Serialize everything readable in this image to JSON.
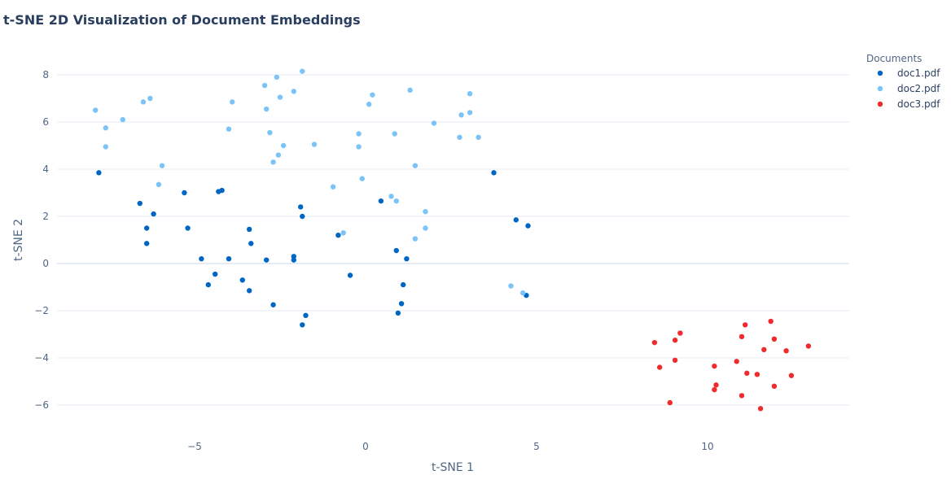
{
  "chart_data": {
    "type": "scatter",
    "title": "t-SNE 2D Visualization of Document Embeddings",
    "xlabel": "t-SNE 1",
    "ylabel": "t-SNE 2",
    "xlim": [
      -9,
      14
    ],
    "ylim": [
      -7.3,
      9
    ],
    "x_ticks": [
      -5,
      0,
      5,
      10
    ],
    "y_ticks": [
      -6,
      -4,
      -2,
      0,
      2,
      4,
      6,
      8
    ],
    "x_tick_labels": [
      "−5",
      "0",
      "5",
      "10"
    ],
    "y_tick_labels": [
      "−6",
      "−4",
      "−2",
      "0",
      "2",
      "4",
      "6",
      "8"
    ],
    "grid": true,
    "legend": {
      "title": "Documents",
      "position": "top-right"
    },
    "series": [
      {
        "name": "doc1.pdf",
        "color": "#0066c4",
        "points": [
          [
            -7.8,
            3.85
          ],
          [
            -6.6,
            2.55
          ],
          [
            -6.2,
            2.1
          ],
          [
            -6.4,
            1.5
          ],
          [
            -6.4,
            0.85
          ],
          [
            -5.3,
            3.0
          ],
          [
            -5.2,
            1.5
          ],
          [
            -4.8,
            0.2
          ],
          [
            -4.3,
            3.05
          ],
          [
            -4.2,
            3.1
          ],
          [
            -4.0,
            0.2
          ],
          [
            -4.4,
            -0.45
          ],
          [
            -4.6,
            -0.9
          ],
          [
            -3.6,
            -0.7
          ],
          [
            -3.4,
            -1.15
          ],
          [
            -3.4,
            1.45
          ],
          [
            -3.35,
            0.85
          ],
          [
            -2.9,
            0.15
          ],
          [
            -2.7,
            -1.75
          ],
          [
            -2.1,
            0.3
          ],
          [
            -2.1,
            0.15
          ],
          [
            -1.9,
            2.4
          ],
          [
            -1.85,
            2.0
          ],
          [
            -1.75,
            -2.2
          ],
          [
            -1.85,
            -2.6
          ],
          [
            -0.8,
            1.2
          ],
          [
            -0.45,
            -0.5
          ],
          [
            0.45,
            2.65
          ],
          [
            0.9,
            0.55
          ],
          [
            1.2,
            0.2
          ],
          [
            1.1,
            -0.9
          ],
          [
            1.05,
            -1.7
          ],
          [
            0.95,
            -2.1
          ],
          [
            3.75,
            3.85
          ],
          [
            4.4,
            1.85
          ],
          [
            4.75,
            1.6
          ],
          [
            4.7,
            -1.35
          ]
        ]
      },
      {
        "name": "doc2.pdf",
        "color": "#7cc3f7",
        "points": [
          [
            -7.9,
            6.5
          ],
          [
            -7.6,
            5.75
          ],
          [
            -7.6,
            4.95
          ],
          [
            -7.1,
            6.1
          ],
          [
            -6.5,
            6.85
          ],
          [
            -6.3,
            7.0
          ],
          [
            -5.95,
            4.15
          ],
          [
            -6.05,
            3.35
          ],
          [
            -3.9,
            6.85
          ],
          [
            -4.0,
            5.7
          ],
          [
            -2.95,
            7.55
          ],
          [
            -2.9,
            6.55
          ],
          [
            -2.8,
            5.55
          ],
          [
            -2.6,
            7.9
          ],
          [
            -2.5,
            7.05
          ],
          [
            -2.55,
            4.6
          ],
          [
            -2.4,
            5.0
          ],
          [
            -2.7,
            4.3
          ],
          [
            -2.1,
            7.3
          ],
          [
            -1.85,
            8.15
          ],
          [
            -1.5,
            5.05
          ],
          [
            -0.95,
            3.25
          ],
          [
            -0.65,
            1.3
          ],
          [
            -0.2,
            5.5
          ],
          [
            -0.2,
            4.95
          ],
          [
            -0.1,
            3.6
          ],
          [
            0.1,
            6.75
          ],
          [
            0.2,
            7.15
          ],
          [
            0.75,
            2.85
          ],
          [
            0.9,
            2.65
          ],
          [
            0.85,
            5.5
          ],
          [
            1.3,
            7.35
          ],
          [
            1.45,
            4.15
          ],
          [
            1.45,
            1.05
          ],
          [
            1.75,
            2.2
          ],
          [
            1.75,
            1.5
          ],
          [
            2.0,
            5.95
          ],
          [
            2.75,
            5.35
          ],
          [
            2.8,
            6.3
          ],
          [
            3.05,
            6.4
          ],
          [
            3.05,
            7.2
          ],
          [
            3.3,
            5.35
          ],
          [
            4.25,
            -0.95
          ],
          [
            4.6,
            -1.25
          ]
        ]
      },
      {
        "name": "doc3.pdf",
        "color": "#ef2b2d",
        "points": [
          [
            8.45,
            -3.35
          ],
          [
            8.6,
            -4.4
          ],
          [
            8.9,
            -5.9
          ],
          [
            9.05,
            -3.25
          ],
          [
            9.05,
            -4.1
          ],
          [
            9.2,
            -2.95
          ],
          [
            10.2,
            -4.35
          ],
          [
            10.25,
            -5.15
          ],
          [
            10.2,
            -5.35
          ],
          [
            10.85,
            -4.15
          ],
          [
            11.0,
            -3.1
          ],
          [
            11.1,
            -2.6
          ],
          [
            11.0,
            -5.6
          ],
          [
            11.15,
            -4.65
          ],
          [
            11.45,
            -4.7
          ],
          [
            11.55,
            -6.15
          ],
          [
            11.65,
            -3.65
          ],
          [
            11.85,
            -2.45
          ],
          [
            11.95,
            -3.2
          ],
          [
            11.95,
            -5.2
          ],
          [
            12.3,
            -3.7
          ],
          [
            12.45,
            -4.75
          ],
          [
            12.95,
            -3.5
          ]
        ]
      }
    ]
  }
}
